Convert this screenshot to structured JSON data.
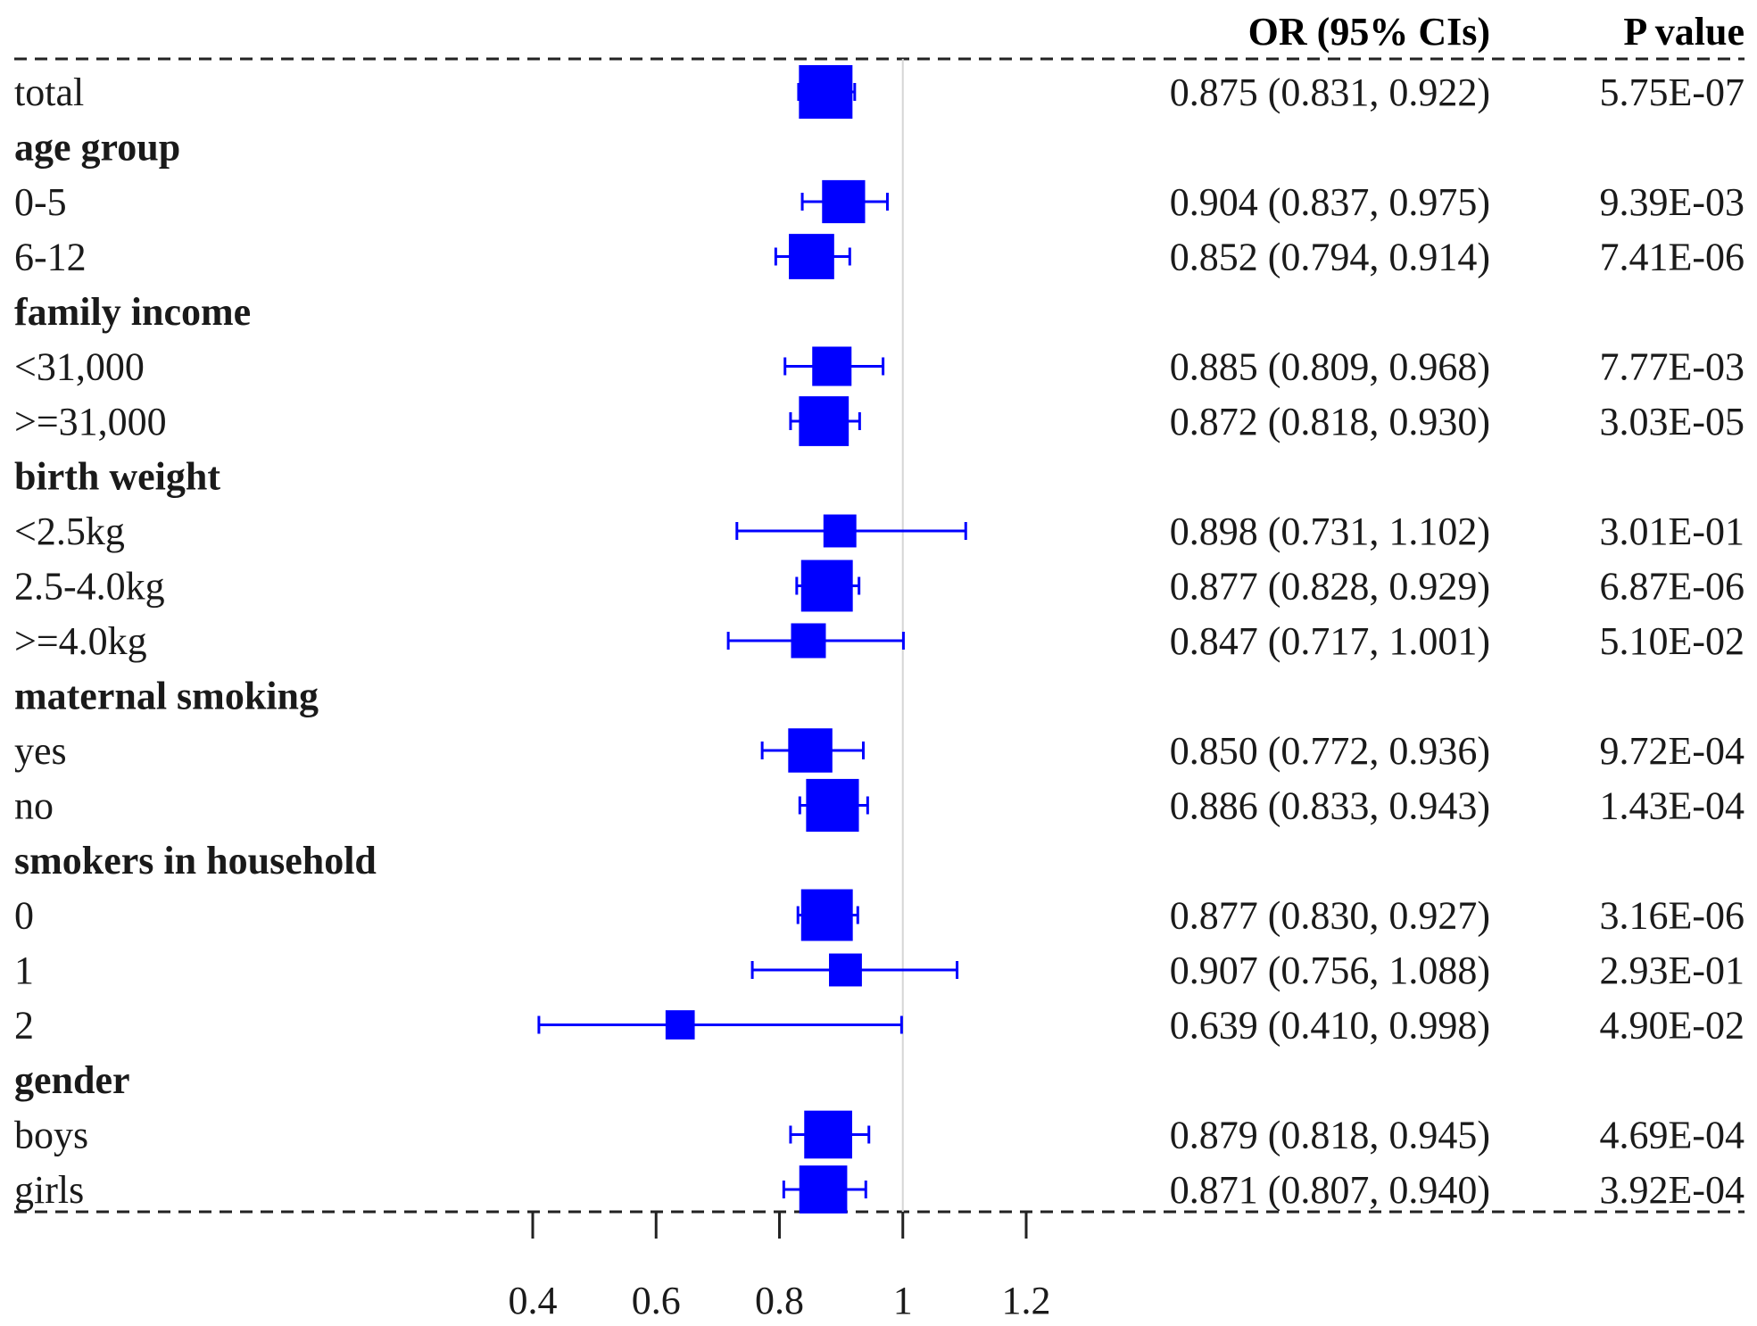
{
  "chart_data": {
    "type": "forest",
    "columns": {
      "estimate": "OR (95% CIs)",
      "p_value": "P value"
    },
    "reference_line": 1,
    "xlim": [
      0.4,
      1.2
    ],
    "x_ticks": [
      "0.4",
      "0.6",
      "0.8",
      "1",
      "1.2"
    ],
    "x_tick_values": [
      0.4,
      0.6,
      0.8,
      1.0,
      1.2
    ],
    "marker_color": "#0000ff",
    "rows": [
      {
        "label": "total",
        "heading": false,
        "or": 0.875,
        "lo": 0.831,
        "hi": 0.922,
        "ci_text": "0.875 (0.831, 0.922)",
        "p": "5.75E-07",
        "weight": 1.0
      },
      {
        "label": "age group",
        "heading": true
      },
      {
        "label": "0-5",
        "heading": false,
        "or": 0.904,
        "lo": 0.837,
        "hi": 0.975,
        "ci_text": "0.904 (0.837, 0.975)",
        "p": "9.39E-03",
        "weight": 0.72
      },
      {
        "label": "6-12",
        "heading": false,
        "or": 0.852,
        "lo": 0.794,
        "hi": 0.914,
        "ci_text": "0.852 (0.794, 0.914)",
        "p": "7.41E-06",
        "weight": 0.78
      },
      {
        "label": "family income",
        "heading": true
      },
      {
        "label": "<31,000",
        "heading": false,
        "or": 0.885,
        "lo": 0.809,
        "hi": 0.968,
        "ci_text": "0.885 (0.809, 0.968)",
        "p": "7.77E-03",
        "weight": 0.62
      },
      {
        "label": ">=31,000",
        "heading": false,
        "or": 0.872,
        "lo": 0.818,
        "hi": 0.93,
        "ci_text": "0.872 (0.818, 0.930)",
        "p": "3.03E-05",
        "weight": 0.9
      },
      {
        "label": "birth weight",
        "heading": true
      },
      {
        "label": "<2.5kg",
        "heading": false,
        "or": 0.898,
        "lo": 0.731,
        "hi": 1.102,
        "ci_text": "0.898 (0.731, 1.102)",
        "p": "3.01E-01",
        "weight": 0.45
      },
      {
        "label": "2.5-4.0kg",
        "heading": false,
        "or": 0.877,
        "lo": 0.828,
        "hi": 0.929,
        "ci_text": "0.877 (0.828, 0.929)",
        "p": "6.87E-06",
        "weight": 0.95
      },
      {
        "label": ">=4.0kg",
        "heading": false,
        "or": 0.847,
        "lo": 0.717,
        "hi": 1.001,
        "ci_text": "0.847 (0.717, 1.001)",
        "p": "5.10E-02",
        "weight": 0.5
      },
      {
        "label": "maternal smoking",
        "heading": true
      },
      {
        "label": "yes",
        "heading": false,
        "or": 0.85,
        "lo": 0.772,
        "hi": 0.936,
        "ci_text": "0.850 (0.772, 0.936)",
        "p": "9.72E-04",
        "weight": 0.75
      },
      {
        "label": "no",
        "heading": false,
        "or": 0.886,
        "lo": 0.833,
        "hi": 0.943,
        "ci_text": "0.886 (0.833, 0.943)",
        "p": "1.43E-04",
        "weight": 0.98
      },
      {
        "label": "smokers in household",
        "heading": true
      },
      {
        "label": "0",
        "heading": false,
        "or": 0.877,
        "lo": 0.83,
        "hi": 0.927,
        "ci_text": "0.877 (0.830, 0.927)",
        "p": "3.16E-06",
        "weight": 0.95
      },
      {
        "label": "1",
        "heading": false,
        "or": 0.907,
        "lo": 0.756,
        "hi": 1.088,
        "ci_text": "0.907 (0.756, 1.088)",
        "p": "2.93E-01",
        "weight": 0.45
      },
      {
        "label": "2",
        "heading": false,
        "or": 0.639,
        "lo": 0.41,
        "hi": 0.998,
        "ci_text": "0.639 (0.410, 0.998)",
        "p": "4.90E-02",
        "weight": 0.35
      },
      {
        "label": "gender",
        "heading": true
      },
      {
        "label": "boys",
        "heading": false,
        "or": 0.879,
        "lo": 0.818,
        "hi": 0.945,
        "ci_text": "0.879 (0.818, 0.945)",
        "p": "4.69E-04",
        "weight": 0.85
      },
      {
        "label": "girls",
        "heading": false,
        "or": 0.871,
        "lo": 0.807,
        "hi": 0.94,
        "ci_text": "0.871 (0.807, 0.940)",
        "p": "3.92E-04",
        "weight": 0.85
      }
    ]
  }
}
